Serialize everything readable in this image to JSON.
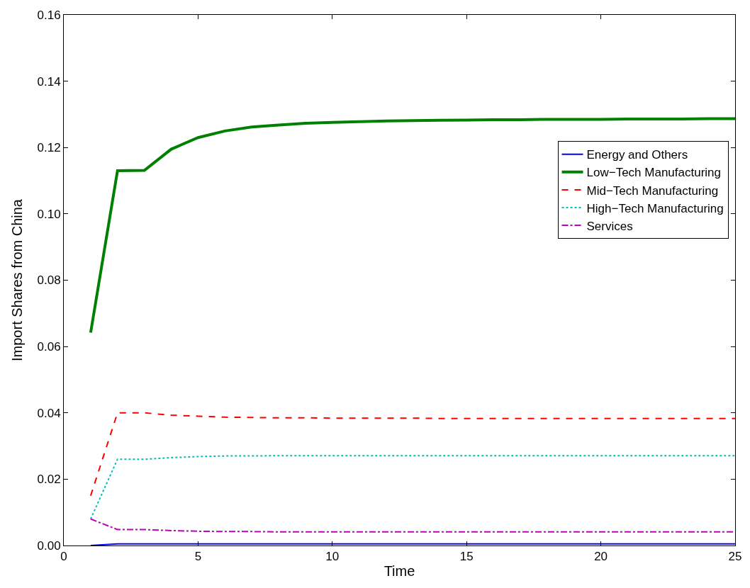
{
  "chart_data": {
    "type": "line",
    "xlabel": "Time",
    "ylabel": "Import Shares from China",
    "x": [
      1,
      2,
      3,
      4,
      5,
      6,
      7,
      8,
      9,
      10,
      11,
      12,
      13,
      14,
      15,
      16,
      17,
      18,
      19,
      20,
      21,
      22,
      23,
      24,
      25
    ],
    "series": [
      {
        "name": "Energy and Others",
        "color": "#0000ff",
        "line_style": "solid",
        "values": [
          0.0,
          0.0005,
          0.0005,
          0.0005,
          0.0005,
          0.0005,
          0.0005,
          0.0005,
          0.0005,
          0.0005,
          0.0005,
          0.0005,
          0.0005,
          0.0005,
          0.0005,
          0.0005,
          0.0005,
          0.0005,
          0.0005,
          0.0005,
          0.0005,
          0.0005,
          0.0005,
          0.0005,
          0.0005
        ]
      },
      {
        "name": "Low−Tech Manufacturing",
        "color": "#008000",
        "line_style": "solid",
        "values": [
          0.0642,
          0.113,
          0.1131,
          0.1195,
          0.123,
          0.125,
          0.1262,
          0.1268,
          0.1273,
          0.1276,
          0.1278,
          0.128,
          0.1281,
          0.1282,
          0.1283,
          0.1284,
          0.1284,
          0.1285,
          0.1285,
          0.1285,
          0.1286,
          0.1286,
          0.1286,
          0.1287,
          0.1287
        ]
      },
      {
        "name": "Mid−Tech Manufacturing",
        "color": "#ff0000",
        "line_style": "dashed",
        "values": [
          0.015,
          0.04,
          0.04,
          0.0393,
          0.039,
          0.0387,
          0.0386,
          0.0385,
          0.0385,
          0.0384,
          0.0384,
          0.0384,
          0.0384,
          0.0383,
          0.0383,
          0.0383,
          0.0383,
          0.0383,
          0.0383,
          0.0383,
          0.0383,
          0.0383,
          0.0383,
          0.0383,
          0.0383
        ]
      },
      {
        "name": "High−Tech Manufacturing",
        "color": "#00bfbf",
        "line_style": "dotted",
        "values": [
          0.008,
          0.026,
          0.026,
          0.0265,
          0.0268,
          0.027,
          0.027,
          0.0271,
          0.0271,
          0.0271,
          0.0271,
          0.0271,
          0.0271,
          0.0271,
          0.0271,
          0.0271,
          0.0271,
          0.0271,
          0.0271,
          0.0271,
          0.0271,
          0.0271,
          0.0271,
          0.0271,
          0.0271
        ]
      },
      {
        "name": "Services",
        "color": "#bf00bf",
        "line_style": "dashdot",
        "values": [
          0.008,
          0.0048,
          0.0048,
          0.0045,
          0.0043,
          0.0042,
          0.0042,
          0.0041,
          0.0041,
          0.0041,
          0.0041,
          0.0041,
          0.0041,
          0.0041,
          0.0041,
          0.0041,
          0.0041,
          0.0041,
          0.0041,
          0.0041,
          0.0041,
          0.0041,
          0.0041,
          0.0041,
          0.0041
        ]
      }
    ],
    "xlim": [
      0,
      25
    ],
    "xticks": [
      0,
      5,
      10,
      15,
      20,
      25
    ],
    "ylim": [
      0,
      0.16
    ],
    "yticks": [
      {
        "value": 0,
        "label": "0.00"
      },
      {
        "value": 0.02,
        "label": "0.02"
      },
      {
        "value": 0.04,
        "label": "0.04"
      },
      {
        "value": 0.06,
        "label": "0.06"
      },
      {
        "value": 0.08,
        "label": "0.08"
      },
      {
        "value": 0.1,
        "label": "0.10"
      },
      {
        "value": 0.12,
        "label": "0.12"
      },
      {
        "value": 0.14,
        "label": "0.14"
      },
      {
        "value": 0.16,
        "label": "0.16"
      }
    ],
    "legend": "right"
  }
}
